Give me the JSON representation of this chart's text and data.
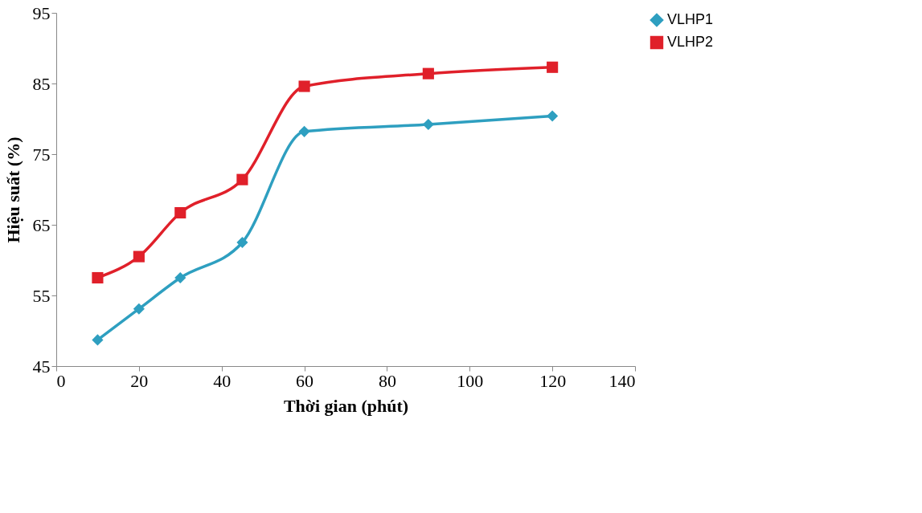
{
  "chart_data": {
    "type": "line",
    "xlabel": "Thời gian (phút)",
    "ylabel": "Hiệu suất (%)",
    "x": [
      10,
      20,
      30,
      45,
      60,
      90,
      120
    ],
    "series": [
      {
        "name": "VLHP1",
        "color": "#2e9fc0",
        "marker": "diamond",
        "values": [
          48.7,
          53.1,
          57.5,
          62.5,
          78.2,
          79.2,
          80.4
        ]
      },
      {
        "name": "VLHP2",
        "color": "#e0202a",
        "marker": "square",
        "values": [
          57.5,
          60.5,
          66.7,
          71.4,
          84.6,
          86.4,
          87.3
        ]
      }
    ],
    "xlim": [
      0,
      140
    ],
    "xticks": [
      0,
      20,
      40,
      60,
      80,
      100,
      120,
      140
    ],
    "ylim": [
      45,
      95
    ],
    "yticks": [
      45,
      55,
      65,
      75,
      85,
      95
    ],
    "grid": false,
    "legend": "right",
    "line_style": "solid"
  }
}
